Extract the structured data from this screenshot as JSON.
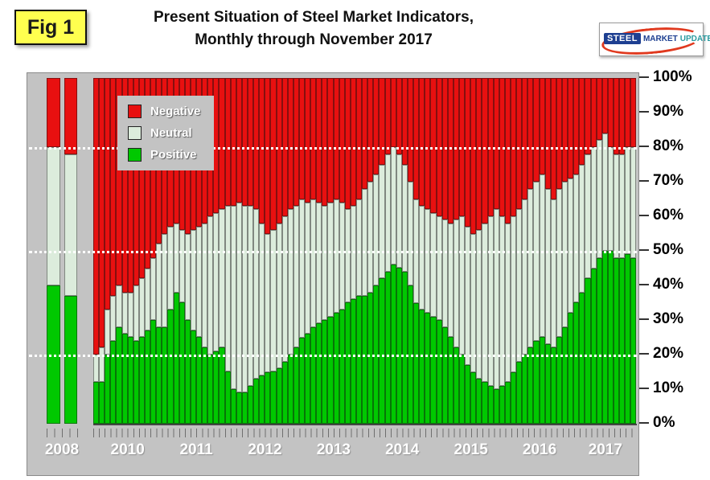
{
  "figure_label": "Fig 1",
  "title": {
    "line1": "Present Situation of Steel Market Indicators,",
    "line2": "Monthly through November 2017"
  },
  "logo": {
    "steel": "STEEL",
    "market": "MARKET",
    "update": "UPDATE"
  },
  "legend": [
    {
      "label": "Negative",
      "color": "#e81010"
    },
    {
      "label": "Neutral",
      "color": "#dcecdc"
    },
    {
      "label": "Positive",
      "color": "#00c800"
    }
  ],
  "y_axis": {
    "labels": [
      "100%",
      "90%",
      "80%",
      "70%",
      "60%",
      "50%",
      "40%",
      "30%",
      "20%",
      "10%",
      "0%"
    ]
  },
  "x_axis": {
    "labels": [
      "2008",
      "2010",
      "2011",
      "2012",
      "2013",
      "2014",
      "2015",
      "2016",
      "2017"
    ]
  },
  "reference_lines_pct": [
    80,
    50,
    20
  ],
  "chart_data": {
    "type": "bar",
    "subtype": "stacked-100-percent",
    "unit": "%",
    "title": "Present Situation of Steel Market Indicators, Monthly through November 2017",
    "ylim": [
      0,
      100
    ],
    "gap_after_index": 1,
    "months": [
      "2008-10",
      "2008-11",
      "2010-01",
      "2010-02",
      "2010-03",
      "2010-04",
      "2010-05",
      "2010-06",
      "2010-07",
      "2010-08",
      "2010-09",
      "2010-10",
      "2010-11",
      "2010-12",
      "2011-01",
      "2011-02",
      "2011-03",
      "2011-04",
      "2011-05",
      "2011-06",
      "2011-07",
      "2011-08",
      "2011-09",
      "2011-10",
      "2011-11",
      "2011-12",
      "2012-01",
      "2012-02",
      "2012-03",
      "2012-04",
      "2012-05",
      "2012-06",
      "2012-07",
      "2012-08",
      "2012-09",
      "2012-10",
      "2012-11",
      "2012-12",
      "2013-01",
      "2013-02",
      "2013-03",
      "2013-04",
      "2013-05",
      "2013-06",
      "2013-07",
      "2013-08",
      "2013-09",
      "2013-10",
      "2013-11",
      "2013-12",
      "2014-01",
      "2014-02",
      "2014-03",
      "2014-04",
      "2014-05",
      "2014-06",
      "2014-07",
      "2014-08",
      "2014-09",
      "2014-10",
      "2014-11",
      "2014-12",
      "2015-01",
      "2015-02",
      "2015-03",
      "2015-04",
      "2015-05",
      "2015-06",
      "2015-07",
      "2015-08",
      "2015-09",
      "2015-10",
      "2015-11",
      "2015-12",
      "2016-01",
      "2016-02",
      "2016-03",
      "2016-04",
      "2016-05",
      "2016-06",
      "2016-07",
      "2016-08",
      "2016-09",
      "2016-10",
      "2016-11",
      "2016-12",
      "2017-01",
      "2017-02",
      "2017-03",
      "2017-04",
      "2017-05",
      "2017-06",
      "2017-07",
      "2017-08",
      "2017-09",
      "2017-10",
      "2017-11"
    ],
    "series": [
      {
        "name": "Positive",
        "color": "#00c800",
        "values": [
          40,
          37,
          12,
          12,
          20,
          24,
          28,
          26,
          25,
          24,
          25,
          27,
          30,
          28,
          28,
          33,
          38,
          35,
          30,
          27,
          25,
          22,
          20,
          21,
          22,
          15,
          10,
          9,
          9,
          11,
          13,
          14,
          15,
          15,
          16,
          18,
          20,
          22,
          25,
          26,
          28,
          29,
          30,
          31,
          32,
          33,
          35,
          36,
          37,
          37,
          38,
          40,
          42,
          44,
          46,
          45,
          44,
          40,
          35,
          33,
          32,
          31,
          30,
          28,
          25,
          22,
          20,
          17,
          15,
          13,
          12,
          11,
          10,
          11,
          12,
          15,
          18,
          20,
          22,
          24,
          25,
          23,
          22,
          25,
          28,
          32,
          35,
          38,
          42,
          45,
          48,
          50,
          50,
          48,
          48,
          49,
          48
        ]
      },
      {
        "name": "Neutral",
        "color": "#dcecdc",
        "values": [
          40,
          41,
          8,
          10,
          13,
          13,
          12,
          12,
          13,
          16,
          17,
          18,
          18,
          24,
          27,
          24,
          20,
          21,
          25,
          29,
          32,
          36,
          40,
          40,
          40,
          48,
          53,
          55,
          54,
          52,
          49,
          44,
          40,
          41,
          42,
          42,
          42,
          41,
          40,
          38,
          37,
          35,
          33,
          33,
          33,
          31,
          27,
          27,
          28,
          31,
          32,
          32,
          33,
          34,
          34,
          33,
          31,
          30,
          30,
          30,
          30,
          30,
          30,
          31,
          33,
          37,
          40,
          40,
          40,
          43,
          46,
          49,
          52,
          49,
          46,
          45,
          44,
          45,
          46,
          46,
          47,
          45,
          43,
          43,
          42,
          39,
          37,
          37,
          36,
          35,
          34,
          34,
          30,
          30,
          30,
          31,
          32
        ]
      },
      {
        "name": "Negative",
        "color": "#e81010",
        "values": [
          20,
          22,
          80,
          78,
          67,
          63,
          60,
          62,
          62,
          60,
          58,
          55,
          52,
          48,
          45,
          43,
          42,
          44,
          45,
          44,
          43,
          42,
          40,
          39,
          38,
          37,
          37,
          36,
          37,
          37,
          38,
          42,
          45,
          44,
          42,
          40,
          38,
          37,
          35,
          36,
          35,
          36,
          37,
          36,
          35,
          36,
          38,
          37,
          35,
          32,
          30,
          28,
          25,
          22,
          20,
          22,
          25,
          30,
          35,
          37,
          38,
          39,
          40,
          41,
          42,
          41,
          40,
          43,
          45,
          44,
          42,
          40,
          38,
          40,
          42,
          40,
          38,
          35,
          32,
          30,
          28,
          32,
          35,
          32,
          30,
          29,
          28,
          25,
          22,
          20,
          18,
          16,
          20,
          22,
          22,
          20,
          20
        ]
      }
    ],
    "legend_position": "upper-left",
    "grid": "dotted-white-reference-lines-at-20-50-80"
  }
}
